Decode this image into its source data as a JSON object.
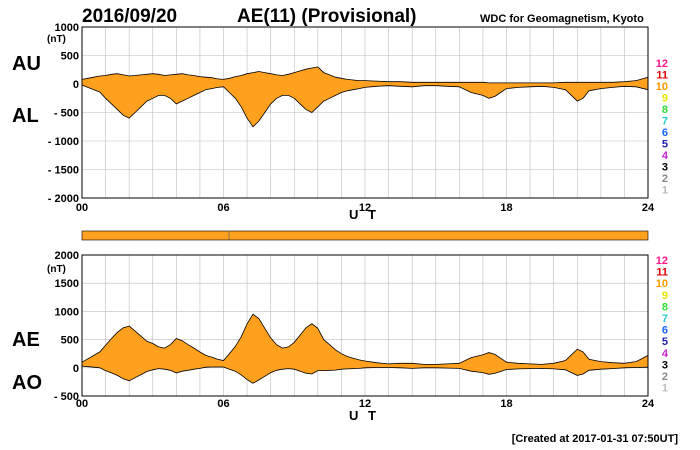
{
  "header": {
    "date": "2016/09/20",
    "title": "AE(11) (Provisional)",
    "source": "WDC for Geomagnetism, Kyoto"
  },
  "footer": {
    "created": "[Created at 2017-01-31 07:50UT]"
  },
  "colors": {
    "fill": "#ffa01e",
    "line": "#000000",
    "grid": "#bdbdbd"
  },
  "chart_data": [
    {
      "type": "area",
      "name": "AU/AL",
      "unit": "(nT)",
      "labels": {
        "upper": "AU",
        "lower": "AL"
      },
      "xlabel": "U T",
      "xlim": [
        0,
        24
      ],
      "ylim": [
        -2000,
        1000
      ],
      "x_ticks": [
        "00",
        "06",
        "12",
        "18",
        "24"
      ],
      "y_ticks": [
        "1000",
        "500",
        "0",
        "- 500",
        "- 1000",
        "- 1500",
        "- 2000"
      ],
      "grid": true,
      "x": [
        0,
        0.25,
        0.5,
        0.75,
        1,
        1.25,
        1.5,
        1.75,
        2,
        2.25,
        2.5,
        2.75,
        3,
        3.25,
        3.5,
        3.75,
        4,
        4.25,
        4.5,
        4.75,
        5,
        5.25,
        5.5,
        5.75,
        6,
        6.25,
        6.5,
        6.75,
        7,
        7.25,
        7.5,
        7.75,
        8,
        8.25,
        8.5,
        8.75,
        9,
        9.25,
        9.5,
        9.75,
        10,
        10.25,
        10.5,
        10.75,
        11,
        11.25,
        11.5,
        11.75,
        12,
        12.5,
        13,
        13.5,
        14,
        14.5,
        15,
        15.5,
        16,
        16.5,
        17,
        17.25,
        17.5,
        17.75,
        18,
        18.5,
        19,
        19.5,
        20,
        20.5,
        20.75,
        21,
        21.25,
        21.5,
        22,
        22.5,
        23,
        23.5,
        24
      ],
      "series": [
        {
          "name": "AU",
          "values": [
            80,
            100,
            120,
            140,
            150,
            170,
            180,
            160,
            140,
            150,
            160,
            170,
            180,
            170,
            150,
            160,
            170,
            180,
            160,
            150,
            130,
            120,
            110,
            90,
            80,
            100,
            130,
            150,
            180,
            200,
            220,
            200,
            180,
            160,
            150,
            170,
            200,
            230,
            260,
            280,
            300,
            200,
            160,
            120,
            100,
            80,
            70,
            60,
            60,
            50,
            40,
            40,
            30,
            30,
            30,
            30,
            30,
            30,
            30,
            20,
            20,
            20,
            20,
            20,
            20,
            20,
            20,
            30,
            30,
            30,
            30,
            30,
            30,
            30,
            40,
            60,
            120
          ]
        },
        {
          "name": "AL",
          "values": [
            -20,
            -60,
            -100,
            -140,
            -250,
            -350,
            -450,
            -550,
            -600,
            -500,
            -400,
            -300,
            -250,
            -200,
            -200,
            -250,
            -350,
            -300,
            -250,
            -200,
            -150,
            -100,
            -80,
            -60,
            -50,
            -150,
            -250,
            -400,
            -600,
            -750,
            -650,
            -500,
            -350,
            -250,
            -200,
            -200,
            -250,
            -350,
            -450,
            -500,
            -400,
            -300,
            -250,
            -200,
            -150,
            -120,
            -100,
            -80,
            -60,
            -40,
            -30,
            -40,
            -50,
            -30,
            -30,
            -40,
            -50,
            -150,
            -200,
            -250,
            -220,
            -150,
            -80,
            -60,
            -50,
            -40,
            -60,
            -100,
            -200,
            -300,
            -250,
            -120,
            -80,
            -60,
            -40,
            -50,
            -100
          ]
        }
      ],
      "legend": [
        "12",
        "11",
        "10",
        "9",
        "8",
        "7",
        "6",
        "5",
        "4",
        "3",
        "2",
        "1"
      ],
      "legend_placement": "right"
    },
    {
      "type": "area",
      "name": "AE/AO",
      "unit": "(nT)",
      "labels": {
        "upper": "AE",
        "lower": "AO"
      },
      "xlabel": "U T",
      "xlim": [
        0,
        24
      ],
      "ylim": [
        -500,
        2000
      ],
      "x_ticks": [
        "00",
        "06",
        "12",
        "18",
        "24"
      ],
      "y_ticks": [
        "2000",
        "1500",
        "1000",
        "500",
        "0",
        "- 500"
      ],
      "grid": true,
      "x": [
        0,
        0.25,
        0.5,
        0.75,
        1,
        1.25,
        1.5,
        1.75,
        2,
        2.25,
        2.5,
        2.75,
        3,
        3.25,
        3.5,
        3.75,
        4,
        4.25,
        4.5,
        4.75,
        5,
        5.25,
        5.5,
        5.75,
        6,
        6.25,
        6.5,
        6.75,
        7,
        7.25,
        7.5,
        7.75,
        8,
        8.25,
        8.5,
        8.75,
        9,
        9.25,
        9.5,
        9.75,
        10,
        10.25,
        10.5,
        10.75,
        11,
        11.25,
        11.5,
        11.75,
        12,
        12.5,
        13,
        13.5,
        14,
        14.5,
        15,
        15.5,
        16,
        16.5,
        17,
        17.25,
        17.5,
        17.75,
        18,
        18.5,
        19,
        19.5,
        20,
        20.5,
        20.75,
        21,
        21.25,
        21.5,
        22,
        22.5,
        23,
        23.5,
        24
      ],
      "series": [
        {
          "name": "AE",
          "values": [
            100,
            160,
            220,
            280,
            400,
            520,
            630,
            710,
            740,
            650,
            560,
            470,
            430,
            370,
            350,
            410,
            520,
            480,
            410,
            350,
            280,
            220,
            190,
            150,
            130,
            250,
            380,
            550,
            780,
            950,
            870,
            700,
            530,
            410,
            350,
            370,
            450,
            580,
            710,
            780,
            700,
            500,
            410,
            320,
            250,
            200,
            170,
            140,
            120,
            90,
            70,
            80,
            80,
            60,
            60,
            70,
            80,
            180,
            230,
            270,
            240,
            170,
            100,
            80,
            70,
            60,
            80,
            130,
            230,
            330,
            280,
            150,
            110,
            90,
            80,
            110,
            220
          ]
        },
        {
          "name": "AO",
          "values": [
            30,
            20,
            10,
            0,
            -50,
            -90,
            -135,
            -195,
            -230,
            -175,
            -120,
            -65,
            -35,
            -15,
            -25,
            -45,
            -90,
            -60,
            -45,
            -25,
            -10,
            10,
            15,
            15,
            15,
            -25,
            -60,
            -125,
            -210,
            -275,
            -215,
            -150,
            -85,
            -45,
            -25,
            -15,
            -25,
            -60,
            -95,
            -110,
            -50,
            -50,
            -45,
            -40,
            -25,
            -20,
            -15,
            -10,
            0,
            5,
            5,
            0,
            -10,
            0,
            0,
            -5,
            -10,
            -60,
            -85,
            -115,
            -100,
            -65,
            -30,
            -20,
            -15,
            -10,
            -20,
            -35,
            -85,
            -135,
            -110,
            -45,
            -25,
            -15,
            0,
            5,
            10
          ]
        }
      ],
      "legend": [
        "12",
        "11",
        "10",
        "9",
        "8",
        "7",
        "6",
        "5",
        "4",
        "3",
        "2",
        "1"
      ],
      "legend_placement": "right"
    }
  ],
  "strip": {
    "ticks": [
      "06"
    ]
  }
}
